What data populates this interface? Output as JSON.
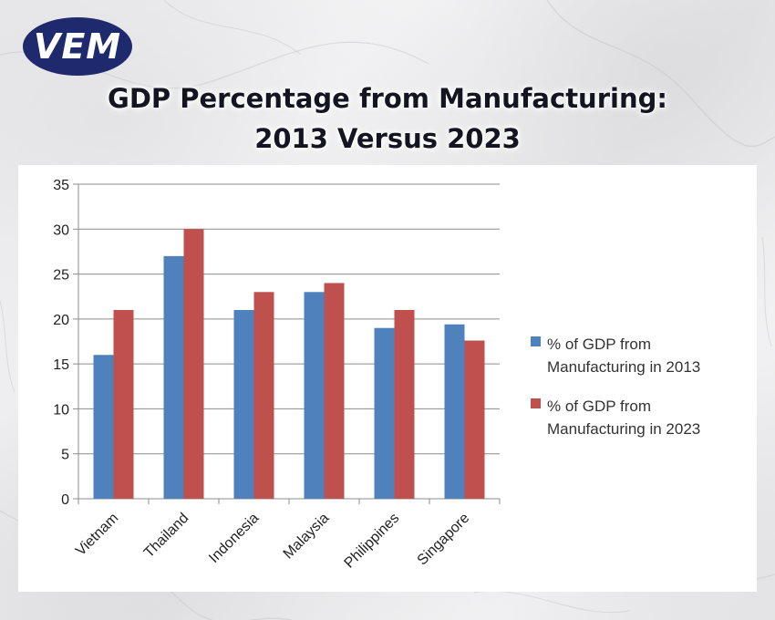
{
  "logo": {
    "text": "VEM",
    "color": "#1f2a6e"
  },
  "title": {
    "line1": "GDP Percentage from Manufacturing:",
    "line2": "2013 Versus 2023"
  },
  "chart_data": {
    "type": "bar",
    "categories": [
      "Vietnam",
      "Thailand",
      "Indonesia",
      "Malaysia",
      "Philippines",
      "Singapore"
    ],
    "series": [
      {
        "name": "% of GDP from Manufacturing in 2013",
        "color": "#4f81bd",
        "values": [
          16,
          27,
          21,
          23,
          19,
          19.4
        ]
      },
      {
        "name": "% of GDP from Manufacturing in 2023",
        "color": "#c0504d",
        "values": [
          21,
          30,
          23,
          24,
          21,
          17.6
        ]
      }
    ],
    "yticks": [
      "0",
      "5",
      "10",
      "15",
      "20",
      "25",
      "30",
      "35"
    ],
    "ylim": [
      0,
      35
    ],
    "grid": true,
    "legend_position": "right"
  }
}
